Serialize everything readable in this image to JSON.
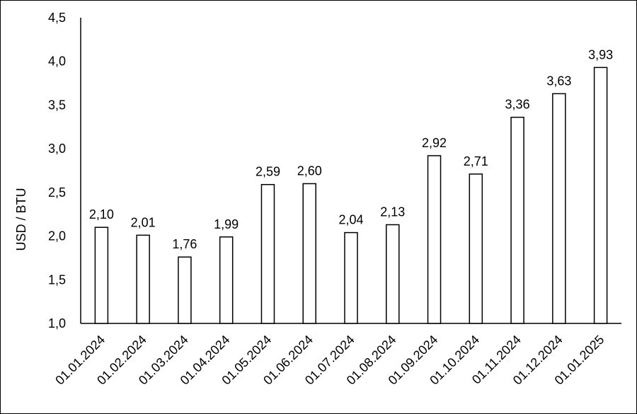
{
  "chart_data": {
    "type": "bar",
    "categories": [
      "01.01.2024",
      "01.02.2024",
      "01.03.2024",
      "01.04.2024",
      "01.05.2024",
      "01.06.2024",
      "01.07.2024",
      "01.08.2024",
      "01.09.2024",
      "01.10.2024",
      "01.11.2024",
      "01.12.2024",
      "01.01.2025"
    ],
    "values": [
      2.1,
      2.01,
      1.76,
      1.99,
      2.59,
      2.6,
      2.04,
      2.13,
      2.92,
      2.71,
      3.36,
      3.63,
      3.93
    ],
    "value_labels": [
      "2,10",
      "2,01",
      "1,76",
      "1,99",
      "2,59",
      "2,60",
      "2,04",
      "2,13",
      "2,92",
      "2,71",
      "3,36",
      "3,63",
      "3,93"
    ],
    "ylabel": "USD / BTU",
    "ylim": [
      1.0,
      4.5
    ],
    "yticks": [
      1.0,
      1.5,
      2.0,
      2.5,
      3.0,
      3.5,
      4.0,
      4.5
    ],
    "ytick_labels": [
      "1,0",
      "1,5",
      "2,0",
      "2,5",
      "3,0",
      "3,5",
      "4,0",
      "4,5"
    ],
    "grid": false,
    "bar_fill": "#ffffff",
    "bar_stroke": "#000000"
  }
}
